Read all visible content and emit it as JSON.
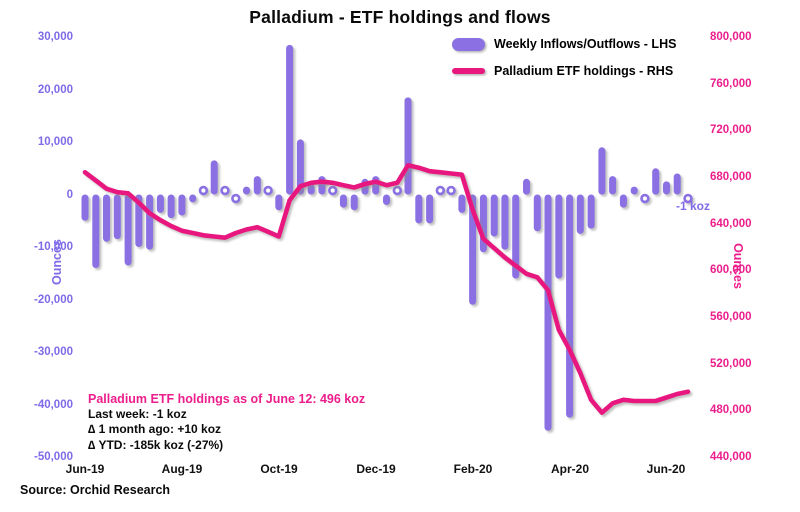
{
  "title": "Palladium - ETF holdings and flows",
  "source": "Source: Orchid Research",
  "colors": {
    "bar_purple": "#8A70E2",
    "axis_purple": "#7F6BE8",
    "line_pink": "#E8187F",
    "axis_pink": "#EC1E8C",
    "text_black": "#0A0A0A"
  },
  "legend": [
    {
      "label": "Weekly Inflows/Outflows - LHS",
      "type": "bar",
      "color": "#8A70E2"
    },
    {
      "label": "Palladium ETF holdings - RHS",
      "type": "line",
      "color": "#E8187F"
    }
  ],
  "annotation": {
    "heading": "Palladium ETF holdings as of June 12: 496 koz",
    "line_last_week": "Last week: -1 koz",
    "line_month": "∆ 1 month ago: +10 koz",
    "line_ytd": "∆ YTD: -185k koz (-27%)"
  },
  "point_label": {
    "text": "-1 koz",
    "week_index": 56
  },
  "chart_data": {
    "type": "bar+line",
    "title": "Palladium - ETF holdings and flows",
    "x_axis": {
      "tick_labels": [
        "Jun-19",
        "Aug-19",
        "Oct-19",
        "Dec-19",
        "Feb-20",
        "Apr-20",
        "Jun-20"
      ],
      "tick_week_index": [
        0,
        9,
        18,
        27,
        36,
        45,
        54
      ],
      "n_weeks": 57
    },
    "lhs_axis": {
      "title": "Ounces",
      "min": -50000,
      "max": 30000,
      "tick_step": 10000,
      "ticks": [
        30000,
        20000,
        10000,
        0,
        -10000,
        -20000,
        -30000,
        -40000,
        -50000
      ],
      "grid": false
    },
    "rhs_axis": {
      "title": "Ounces",
      "min": 440000,
      "max": 800000,
      "tick_step": 40000,
      "ticks": [
        800000,
        760000,
        720000,
        680000,
        640000,
        600000,
        560000,
        520000,
        480000,
        440000
      ],
      "grid": false
    },
    "series": [
      {
        "name": "Weekly Inflows/Outflows - LHS",
        "type": "bar",
        "axis": "lhs",
        "color": "#8A70E2",
        "values": [
          -5000,
          -14000,
          -9000,
          -8500,
          -13500,
          -10000,
          -10500,
          -3500,
          -4500,
          -4000,
          -1500,
          500,
          6500,
          500,
          -500,
          1500,
          3500,
          500,
          -3000,
          28500,
          10500,
          2000,
          3500,
          500,
          -2500,
          -3000,
          3000,
          3500,
          -2000,
          500,
          18500,
          -5500,
          -5500,
          500,
          500,
          -3500,
          -21000,
          -11000,
          -8000,
          -10500,
          -16000,
          3000,
          -7000,
          -45000,
          -16000,
          -42500,
          -7500,
          -6500,
          9000,
          3500,
          -2500,
          1500,
          -500,
          5000,
          2500,
          4000,
          -1000
        ]
      },
      {
        "name": "Palladium ETF holdings - RHS",
        "type": "line",
        "axis": "rhs",
        "color": "#E8187F",
        "values": [
          684000,
          677000,
          670000,
          667000,
          666000,
          658000,
          649000,
          643000,
          638000,
          634000,
          632000,
          630000,
          629000,
          628000,
          632000,
          635000,
          637000,
          633000,
          629000,
          660000,
          672000,
          675000,
          676000,
          675000,
          673000,
          671000,
          674000,
          676000,
          673000,
          675000,
          690000,
          688000,
          685000,
          684000,
          683000,
          682000,
          652000,
          627000,
          619000,
          611000,
          604000,
          597000,
          594000,
          583000,
          549000,
          532000,
          512000,
          489000,
          478000,
          486000,
          489000,
          488000,
          488000,
          488000,
          491000,
          494000,
          496000
        ]
      }
    ]
  }
}
